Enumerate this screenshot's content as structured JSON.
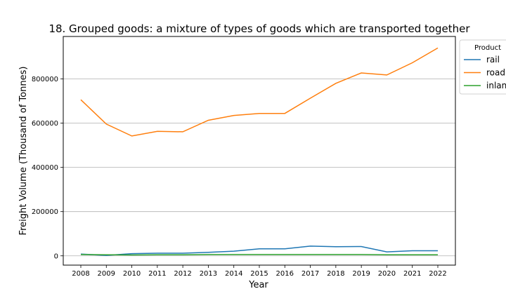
{
  "chart_data": {
    "type": "line",
    "title": "18. Grouped goods: a mixture of types of goods which are transported together",
    "xlabel": "Year",
    "ylabel": "Freight Volume (Thousand of Tonnes)",
    "x": [
      2008,
      2009,
      2010,
      2011,
      2012,
      2013,
      2014,
      2015,
      2016,
      2017,
      2018,
      2019,
      2020,
      2021,
      2022
    ],
    "ylim": [
      -42000,
      992000
    ],
    "yticks": [
      0,
      200000,
      400000,
      600000,
      800000
    ],
    "grid": "y",
    "legend": {
      "title": "Product",
      "placement": "top-right"
    },
    "series": [
      {
        "name": "rail",
        "color": "#1f77b4",
        "values": [
          8000,
          2000,
          10000,
          12000,
          12000,
          16000,
          21000,
          32000,
          32000,
          44000,
          41000,
          42000,
          18000,
          23000,
          23000
        ]
      },
      {
        "name": "road",
        "color": "#ff7f0e",
        "values": [
          706000,
          596000,
          542000,
          563000,
          561000,
          613000,
          635000,
          644000,
          644000,
          713000,
          780000,
          827000,
          818000,
          873000,
          940000
        ]
      },
      {
        "name": "inland waterways",
        "color": "#2ca02c",
        "values": [
          6000,
          5000,
          4000,
          5000,
          5000,
          6000,
          6000,
          6000,
          6000,
          6000,
          6000,
          6000,
          5000,
          5000,
          5000
        ]
      }
    ]
  }
}
